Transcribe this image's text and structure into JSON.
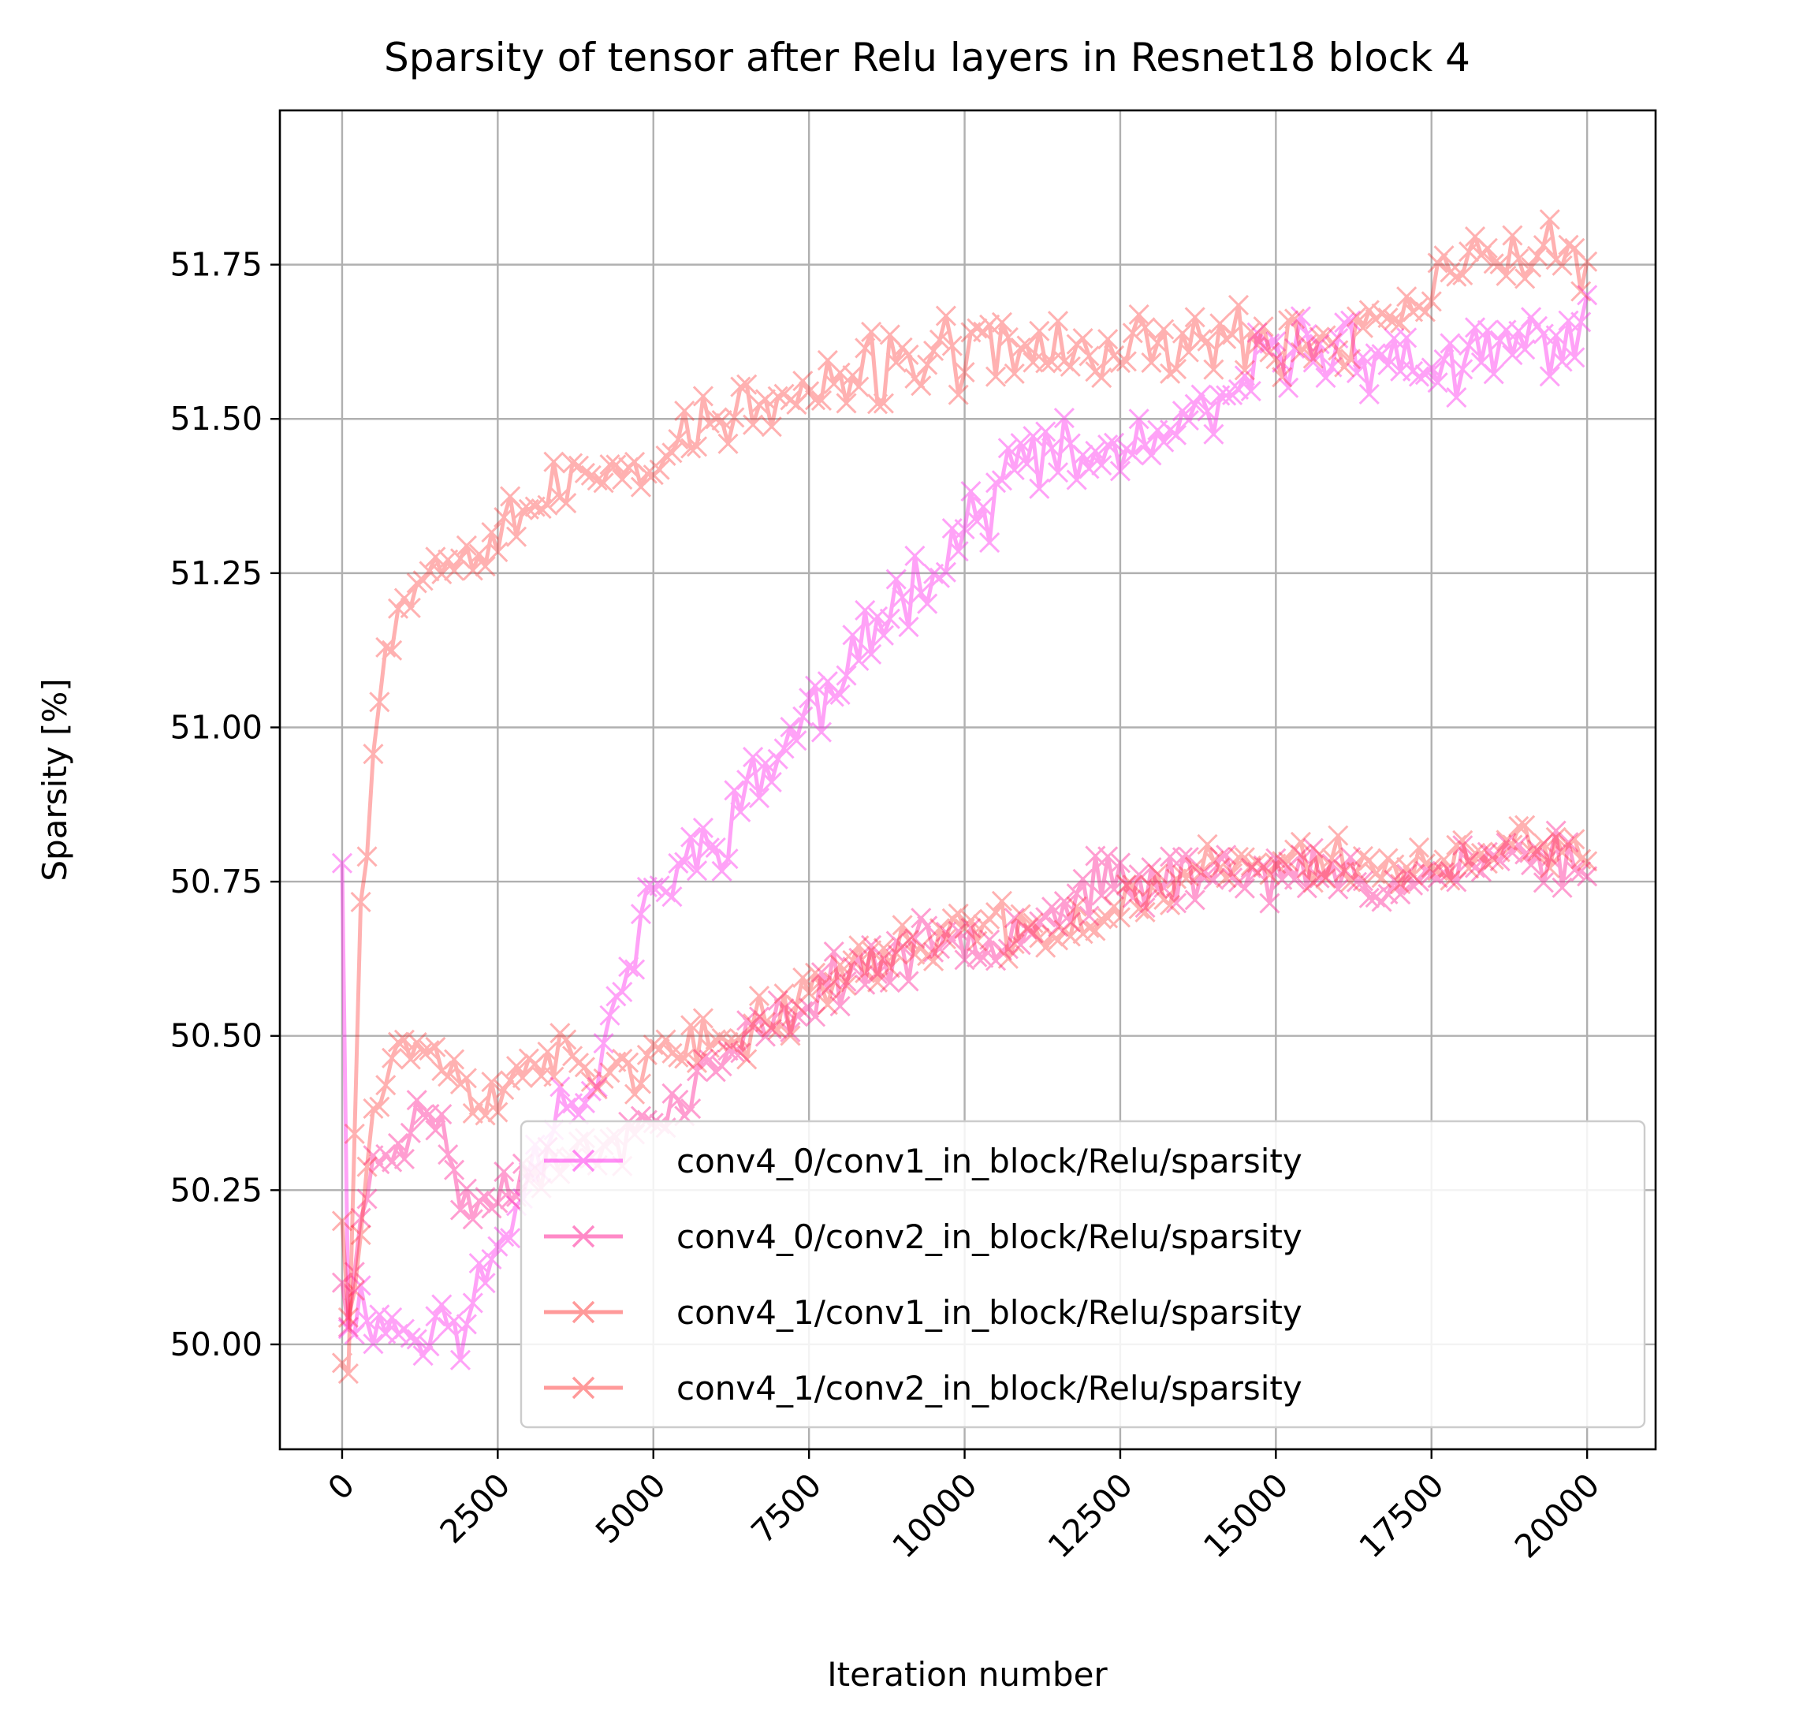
{
  "chart_data": {
    "type": "line",
    "title": "Sparsity of tensor after Relu layers in Resnet18 block 4",
    "xlabel": "Iteration number",
    "ylabel": "Sparsity [%]",
    "xlim": [
      -1000,
      21100
    ],
    "ylim": [
      49.83,
      52.0
    ],
    "xticks": [
      0,
      2500,
      5000,
      7500,
      10000,
      12500,
      15000,
      17500,
      20000
    ],
    "xtick_labels": [
      "0",
      "2500",
      "5000",
      "7500",
      "10000",
      "12500",
      "15000",
      "17500",
      "20000"
    ],
    "yticks": [
      50.0,
      50.25,
      50.5,
      50.75,
      51.0,
      51.25,
      51.5,
      51.75
    ],
    "ytick_labels": [
      "50.00",
      "50.25",
      "50.50",
      "50.75",
      "51.00",
      "51.25",
      "51.50",
      "51.75"
    ],
    "xtick_rotation": 45,
    "grid": true,
    "legend_position": "lower-right",
    "marker": "x",
    "x_step": 100,
    "series": [
      {
        "name": "conv4_0/conv1_in_block/Relu/sparsity",
        "color": "#ff33ee",
        "alpha": 0.45,
        "anchors": [
          [
            0,
            50.78
          ],
          [
            100,
            50.06
          ],
          [
            500,
            50.05
          ],
          [
            1000,
            50.02
          ],
          [
            2000,
            50.03
          ],
          [
            2500,
            50.16
          ],
          [
            3500,
            50.4
          ],
          [
            4000,
            50.41
          ],
          [
            4500,
            50.58
          ],
          [
            5000,
            50.73
          ],
          [
            6000,
            50.82
          ],
          [
            7000,
            50.96
          ],
          [
            7500,
            51.02
          ],
          [
            8000,
            51.07
          ],
          [
            9000,
            51.22
          ],
          [
            10000,
            51.32
          ],
          [
            11000,
            51.44
          ],
          [
            12000,
            51.43
          ],
          [
            13000,
            51.46
          ],
          [
            14000,
            51.5
          ],
          [
            15000,
            51.61
          ],
          [
            16000,
            51.62
          ],
          [
            17000,
            51.59
          ],
          [
            18000,
            51.58
          ],
          [
            19000,
            51.62
          ],
          [
            20000,
            51.64
          ]
        ],
        "noise": 0.045,
        "seed": 11
      },
      {
        "name": "conv4_0/conv2_in_block/Relu/sparsity",
        "color": "#ff2a9a",
        "alpha": 0.45,
        "anchors": [
          [
            0,
            50.1
          ],
          [
            100,
            50.05
          ],
          [
            500,
            50.3
          ],
          [
            1000,
            50.34
          ],
          [
            1500,
            50.38
          ],
          [
            2000,
            50.22
          ],
          [
            2500,
            50.24
          ],
          [
            3000,
            50.3
          ],
          [
            4000,
            50.3
          ],
          [
            5000,
            50.36
          ],
          [
            6000,
            50.45
          ],
          [
            7000,
            50.52
          ],
          [
            8000,
            50.6
          ],
          [
            9000,
            50.63
          ],
          [
            10000,
            50.66
          ],
          [
            11000,
            50.68
          ],
          [
            12000,
            50.74
          ],
          [
            13000,
            50.75
          ],
          [
            14000,
            50.77
          ],
          [
            15000,
            50.76
          ],
          [
            16000,
            50.76
          ],
          [
            17000,
            50.75
          ],
          [
            18000,
            50.77
          ],
          [
            19000,
            50.8
          ],
          [
            20000,
            50.78
          ]
        ],
        "noise": 0.035,
        "seed": 23
      },
      {
        "name": "conv4_1/conv1_in_block/Relu/sparsity",
        "color": "#ff2222",
        "alpha": 0.35,
        "anchors": [
          [
            0,
            50.2
          ],
          [
            100,
            50.05
          ],
          [
            500,
            50.38
          ],
          [
            1000,
            50.5
          ],
          [
            2000,
            50.42
          ],
          [
            2500,
            50.38
          ],
          [
            3000,
            50.48
          ],
          [
            4000,
            50.44
          ],
          [
            5000,
            50.46
          ],
          [
            6000,
            50.48
          ],
          [
            7000,
            50.54
          ],
          [
            8000,
            50.6
          ],
          [
            9000,
            50.64
          ],
          [
            10000,
            50.68
          ],
          [
            11000,
            50.66
          ],
          [
            12000,
            50.68
          ],
          [
            13000,
            50.74
          ],
          [
            14000,
            50.77
          ],
          [
            15000,
            50.78
          ],
          [
            16000,
            50.78
          ],
          [
            17000,
            50.77
          ],
          [
            18000,
            50.78
          ],
          [
            19000,
            50.8
          ],
          [
            20000,
            50.8
          ]
        ],
        "noise": 0.035,
        "seed": 37
      },
      {
        "name": "conv4_1/conv2_in_block/Relu/sparsity",
        "color": "#ff2222",
        "alpha": 0.35,
        "anchors": [
          [
            0,
            49.97
          ],
          [
            100,
            50.0
          ],
          [
            300,
            50.72
          ],
          [
            500,
            50.95
          ],
          [
            700,
            51.15
          ],
          [
            1000,
            51.22
          ],
          [
            2000,
            51.3
          ],
          [
            3000,
            51.36
          ],
          [
            4000,
            51.4
          ],
          [
            5000,
            51.44
          ],
          [
            6000,
            51.5
          ],
          [
            7000,
            51.52
          ],
          [
            8000,
            51.55
          ],
          [
            9000,
            51.6
          ],
          [
            10000,
            51.6
          ],
          [
            11000,
            51.62
          ],
          [
            12000,
            51.6
          ],
          [
            13000,
            51.62
          ],
          [
            14000,
            51.63
          ],
          [
            15000,
            51.62
          ],
          [
            16000,
            51.63
          ],
          [
            17000,
            51.68
          ],
          [
            18000,
            51.74
          ],
          [
            19000,
            51.77
          ],
          [
            20000,
            51.75
          ]
        ],
        "noise": 0.045,
        "seed": 53
      }
    ]
  }
}
